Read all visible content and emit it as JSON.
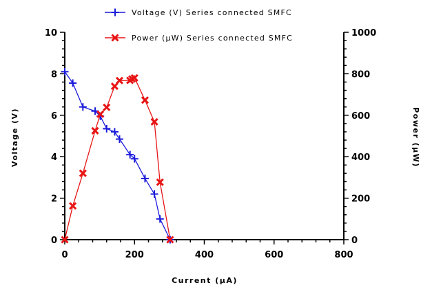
{
  "chart_data": {
    "type": "line",
    "x_label": "Current (µA)",
    "y_label_left": "Voltage (V)",
    "y_label_right": "Power (µW)",
    "x_range": [
      0,
      800
    ],
    "x_ticks": [
      0,
      200,
      400,
      600,
      800
    ],
    "y_left_range": [
      0,
      10
    ],
    "y_left_ticks": [
      0,
      2,
      4,
      6,
      8,
      10
    ],
    "y_right_range": [
      0,
      1000
    ],
    "y_right_ticks": [
      0,
      200,
      400,
      600,
      800,
      1000
    ],
    "grid": false,
    "legend_position": "top",
    "series": [
      {
        "name": "Voltage (V) Series connected SMFC",
        "axis": "left",
        "color": "#1a1adb",
        "marker": "plus",
        "x": [
          0,
          23,
          52,
          87,
          102,
          120,
          143,
          157,
          187,
          200,
          230,
          257,
          273,
          302
        ],
        "y": [
          8.1,
          7.55,
          6.4,
          6.2,
          5.95,
          5.35,
          5.2,
          4.85,
          4.1,
          3.9,
          2.95,
          2.2,
          1.0,
          0.0
        ]
      },
      {
        "name": "Power (µW) Series connected SMFC",
        "axis": "right",
        "color": "#e81414",
        "marker": "x",
        "x": [
          0,
          23,
          52,
          87,
          102,
          120,
          143,
          157,
          187,
          193,
          200,
          230,
          257,
          273,
          302
        ],
        "y": [
          0,
          163,
          320,
          525,
          605,
          638,
          740,
          767,
          768,
          775,
          780,
          673,
          568,
          277,
          0
        ]
      }
    ]
  }
}
